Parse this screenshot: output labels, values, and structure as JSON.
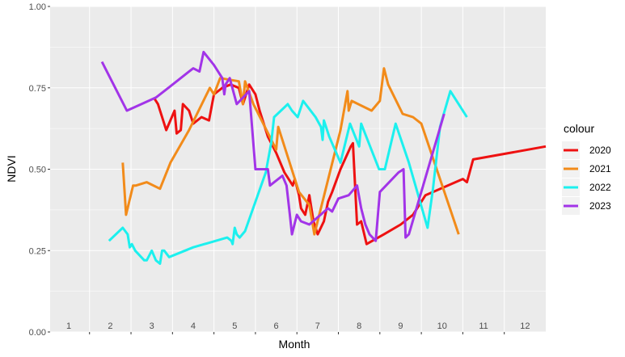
{
  "chart_data": {
    "type": "line",
    "xlabel": "Month",
    "ylabel": "NDVI",
    "xlim": [
      0.55,
      12.5
    ],
    "ylim": [
      0,
      1
    ],
    "x_ticks": [
      {
        "pos": 1,
        "label": "1"
      },
      {
        "pos": 2,
        "label": "2"
      },
      {
        "pos": 3,
        "label": "3"
      },
      {
        "pos": 4,
        "label": "4"
      },
      {
        "pos": 5,
        "label": "5"
      },
      {
        "pos": 6,
        "label": "6"
      },
      {
        "pos": 7,
        "label": "7"
      },
      {
        "pos": 8,
        "label": "8"
      },
      {
        "pos": 9,
        "label": "9"
      },
      {
        "pos": 10,
        "label": "10"
      },
      {
        "pos": 11,
        "label": "11"
      },
      {
        "pos": 12,
        "label": "12"
      }
    ],
    "x_axis_ticks": [
      1.5,
      2.5,
      3.5,
      4.5,
      5.5,
      6.5,
      7.5,
      8.5,
      9.5,
      10.5,
      11.5
    ],
    "x_gridlines": [
      1.5,
      2.5,
      3.5,
      4.5,
      5.5,
      6.5,
      7.5,
      8.5,
      9.5,
      10.5,
      11.5
    ],
    "y_ticks": [
      0,
      0.25,
      0.5,
      0.75,
      1
    ],
    "y_tick_labels": [
      "0.00",
      "0.25",
      "0.50",
      "0.75",
      "1.00"
    ],
    "grid": true,
    "legend": {
      "title": "colour",
      "position": "right"
    },
    "series": [
      {
        "name": "2020",
        "color": "#ee1111",
        "points": [
          [
            3.05,
            0.72
          ],
          [
            3.15,
            0.7
          ],
          [
            3.35,
            0.62
          ],
          [
            3.55,
            0.68
          ],
          [
            3.6,
            0.61
          ],
          [
            3.7,
            0.62
          ],
          [
            3.75,
            0.7
          ],
          [
            3.9,
            0.68
          ],
          [
            4.0,
            0.64
          ],
          [
            4.2,
            0.66
          ],
          [
            4.38,
            0.65
          ],
          [
            4.5,
            0.73
          ],
          [
            4.7,
            0.75
          ],
          [
            4.9,
            0.76
          ],
          [
            5.1,
            0.75
          ],
          [
            5.2,
            0.7
          ],
          [
            5.35,
            0.76
          ],
          [
            5.5,
            0.73
          ],
          [
            5.6,
            0.68
          ],
          [
            5.8,
            0.6
          ],
          [
            6.0,
            0.55
          ],
          [
            6.2,
            0.49
          ],
          [
            6.4,
            0.45
          ],
          [
            6.45,
            0.47
          ],
          [
            6.55,
            0.42
          ],
          [
            6.6,
            0.38
          ],
          [
            6.7,
            0.36
          ],
          [
            6.8,
            0.42
          ],
          [
            6.9,
            0.34
          ],
          [
            7.0,
            0.3
          ],
          [
            7.15,
            0.34
          ],
          [
            7.25,
            0.4
          ],
          [
            7.35,
            0.43
          ],
          [
            7.55,
            0.5
          ],
          [
            7.8,
            0.57
          ],
          [
            7.85,
            0.58
          ],
          [
            7.95,
            0.33
          ],
          [
            8.05,
            0.34
          ],
          [
            8.18,
            0.27
          ],
          [
            8.6,
            0.3
          ],
          [
            9.0,
            0.33
          ],
          [
            9.3,
            0.36
          ],
          [
            9.6,
            0.42
          ],
          [
            10.5,
            0.47
          ],
          [
            10.6,
            0.46
          ],
          [
            10.75,
            0.53
          ],
          [
            12.5,
            0.57
          ]
        ]
      },
      {
        "name": "2021",
        "color": "#f28b1a",
        "points": [
          [
            2.3,
            0.52
          ],
          [
            2.38,
            0.36
          ],
          [
            2.55,
            0.45
          ],
          [
            2.62,
            0.45
          ],
          [
            2.88,
            0.46
          ],
          [
            3.2,
            0.44
          ],
          [
            3.45,
            0.52
          ],
          [
            3.9,
            0.62
          ],
          [
            4.4,
            0.75
          ],
          [
            4.5,
            0.73
          ],
          [
            4.65,
            0.78
          ],
          [
            5.1,
            0.77
          ],
          [
            5.2,
            0.7
          ],
          [
            5.25,
            0.77
          ],
          [
            5.45,
            0.7
          ],
          [
            5.65,
            0.65
          ],
          [
            6.0,
            0.56
          ],
          [
            6.05,
            0.63
          ],
          [
            6.55,
            0.43
          ],
          [
            6.8,
            0.39
          ],
          [
            6.92,
            0.3
          ],
          [
            7.55,
            0.62
          ],
          [
            7.72,
            0.74
          ],
          [
            7.75,
            0.68
          ],
          [
            7.82,
            0.71
          ],
          [
            8.3,
            0.68
          ],
          [
            8.5,
            0.71
          ],
          [
            8.6,
            0.81
          ],
          [
            8.7,
            0.76
          ],
          [
            9.05,
            0.67
          ],
          [
            9.3,
            0.66
          ],
          [
            9.5,
            0.64
          ],
          [
            10.4,
            0.3
          ]
        ]
      },
      {
        "name": "2022",
        "color": "#1cf0ee",
        "points": [
          [
            1.97,
            0.28
          ],
          [
            2.3,
            0.32
          ],
          [
            2.42,
            0.3
          ],
          [
            2.47,
            0.26
          ],
          [
            2.52,
            0.27
          ],
          [
            2.6,
            0.25
          ],
          [
            2.82,
            0.22
          ],
          [
            2.88,
            0.22
          ],
          [
            3.0,
            0.25
          ],
          [
            3.1,
            0.22
          ],
          [
            3.2,
            0.21
          ],
          [
            3.25,
            0.25
          ],
          [
            3.3,
            0.25
          ],
          [
            3.42,
            0.23
          ],
          [
            4.0,
            0.26
          ],
          [
            4.82,
            0.29
          ],
          [
            4.92,
            0.28
          ],
          [
            4.95,
            0.27
          ],
          [
            5.0,
            0.32
          ],
          [
            5.05,
            0.3
          ],
          [
            5.12,
            0.29
          ],
          [
            5.25,
            0.31
          ],
          [
            5.75,
            0.49
          ],
          [
            5.88,
            0.58
          ],
          [
            5.95,
            0.66
          ],
          [
            6.2,
            0.69
          ],
          [
            6.28,
            0.7
          ],
          [
            6.38,
            0.68
          ],
          [
            6.52,
            0.66
          ],
          [
            6.65,
            0.71
          ],
          [
            6.95,
            0.66
          ],
          [
            7.08,
            0.63
          ],
          [
            7.12,
            0.59
          ],
          [
            7.15,
            0.65
          ],
          [
            7.28,
            0.6
          ],
          [
            7.55,
            0.52
          ],
          [
            7.78,
            0.64
          ],
          [
            8.0,
            0.57
          ],
          [
            8.05,
            0.64
          ],
          [
            8.48,
            0.5
          ],
          [
            8.62,
            0.5
          ],
          [
            8.88,
            0.64
          ],
          [
            9.2,
            0.52
          ],
          [
            9.65,
            0.32
          ],
          [
            9.78,
            0.44
          ],
          [
            9.95,
            0.63
          ],
          [
            10.2,
            0.74
          ],
          [
            10.6,
            0.66
          ]
        ]
      },
      {
        "name": "2023",
        "color": "#a234e8",
        "points": [
          [
            1.8,
            0.83
          ],
          [
            2.4,
            0.68
          ],
          [
            3.1,
            0.72
          ],
          [
            3.4,
            0.75
          ],
          [
            3.9,
            0.8
          ],
          [
            4.0,
            0.81
          ],
          [
            4.15,
            0.8
          ],
          [
            4.25,
            0.86
          ],
          [
            4.5,
            0.82
          ],
          [
            4.7,
            0.78
          ],
          [
            4.75,
            0.73
          ],
          [
            4.78,
            0.76
          ],
          [
            4.88,
            0.78
          ],
          [
            5.05,
            0.7
          ],
          [
            5.35,
            0.74
          ],
          [
            5.5,
            0.5
          ],
          [
            5.65,
            0.5
          ],
          [
            5.8,
            0.5
          ],
          [
            5.85,
            0.45
          ],
          [
            6.15,
            0.48
          ],
          [
            6.25,
            0.45
          ],
          [
            6.33,
            0.36
          ],
          [
            6.38,
            0.3
          ],
          [
            6.5,
            0.36
          ],
          [
            6.6,
            0.34
          ],
          [
            6.8,
            0.33
          ],
          [
            7.25,
            0.38
          ],
          [
            7.35,
            0.37
          ],
          [
            7.5,
            0.41
          ],
          [
            7.75,
            0.42
          ],
          [
            7.95,
            0.45
          ],
          [
            8.05,
            0.38
          ],
          [
            8.15,
            0.33
          ],
          [
            8.25,
            0.3
          ],
          [
            8.4,
            0.28
          ],
          [
            8.5,
            0.43
          ],
          [
            8.95,
            0.49
          ],
          [
            9.07,
            0.5
          ],
          [
            9.12,
            0.29
          ],
          [
            9.2,
            0.3
          ],
          [
            10.05,
            0.67
          ]
        ]
      }
    ]
  }
}
